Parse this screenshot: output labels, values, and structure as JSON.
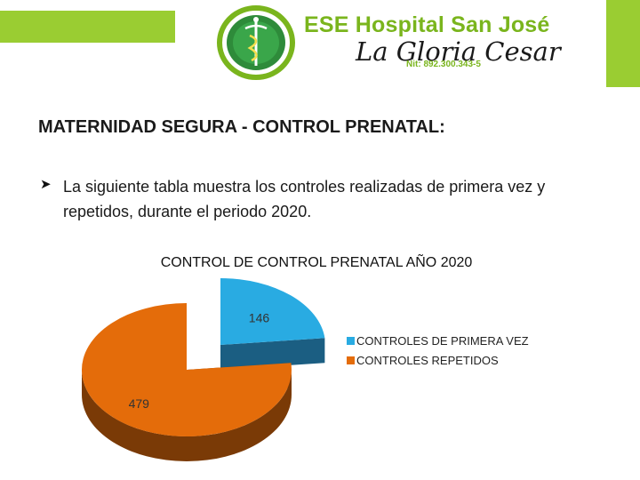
{
  "header": {
    "title": "ESE Hospital San José",
    "subtitle": "La Gloria Cesar",
    "nit": "Nit: 892.300.343-5",
    "accent_color": "#9acd32"
  },
  "section": {
    "title": "MATERNIDAD SEGURA  - CONTROL PRENATAL:",
    "bullet_text": "La siguiente tabla muestra los controles realizadas de primera vez y repetidos, durante el periodo 2020."
  },
  "chart_data": {
    "type": "pie",
    "title": "CONTROL DE CONTROL PRENATAL AÑO 2020",
    "categories": [
      "CONTROLES DE PRIMERA VEZ",
      "CONTROLES REPETIDOS"
    ],
    "values": [
      146,
      479
    ],
    "value_labels": [
      "146",
      "479"
    ],
    "colors": [
      "#29abe2",
      "#e46c0a"
    ],
    "side_colors": [
      "#1b5e82",
      "#7a3a06"
    ],
    "legend_position": "right",
    "style": "3d-exploded"
  }
}
